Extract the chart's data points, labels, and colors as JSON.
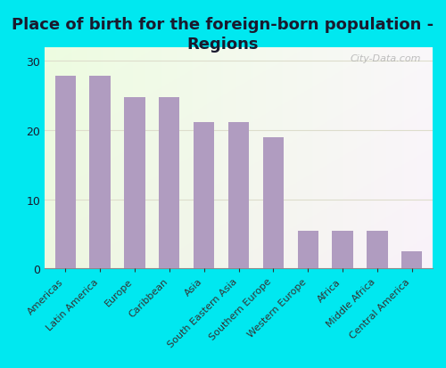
{
  "title": "Place of birth for the foreign-born population -\nRegions",
  "categories": [
    "Americas",
    "Latin America",
    "Europe",
    "Caribbean",
    "Asia",
    "South Eastern Asia",
    "Southern Europe",
    "Western Europe",
    "Africa",
    "Middle Africa",
    "Central America"
  ],
  "values": [
    27.8,
    27.8,
    24.8,
    24.8,
    21.2,
    21.2,
    19.0,
    5.5,
    5.4,
    5.5,
    2.5
  ],
  "bar_color": "#b09cc0",
  "plot_bg_top": "#e8f5e0",
  "plot_bg_bottom": "#f8f8e8",
  "outer_background": "#00e8f0",
  "ylim": [
    0,
    32
  ],
  "yticks": [
    0,
    10,
    20,
    30
  ],
  "title_fontsize": 13,
  "tick_fontsize": 8,
  "watermark": "City-Data.com",
  "title_color": "#1a1a2e",
  "ytick_color": "#1a1a2e"
}
